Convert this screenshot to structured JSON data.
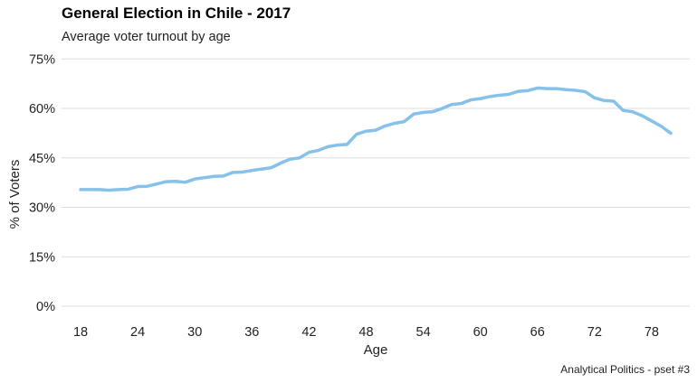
{
  "chart_data": {
    "type": "line",
    "title": "General Election in Chile - 2017",
    "subtitle": "Average voter turnout by age",
    "xlabel": "Age",
    "ylabel": "% of Voters",
    "caption": "Analytical Politics - pset #3",
    "xlim": [
      16,
      82
    ],
    "ylim": [
      -3,
      77
    ],
    "x_ticks": [
      18,
      24,
      30,
      36,
      42,
      48,
      54,
      60,
      66,
      72,
      78
    ],
    "y_ticks": [
      0,
      15,
      30,
      45,
      60,
      75
    ],
    "y_tick_labels": [
      "0%",
      "15%",
      "30%",
      "45%",
      "60%",
      "75%"
    ],
    "grid": "horizontal",
    "line_color": "#85c1e9",
    "series": [
      {
        "x": [
          18,
          19,
          20,
          21,
          22,
          23,
          24,
          25,
          26,
          27,
          28,
          29,
          30,
          31,
          32,
          33,
          34,
          35,
          36,
          37,
          38,
          39,
          40,
          41,
          42,
          43,
          44,
          45,
          46,
          47,
          48,
          49,
          50,
          51,
          52,
          53,
          54,
          55,
          56,
          57,
          58,
          59,
          60,
          61,
          62,
          63,
          64,
          65,
          66,
          67,
          68,
          69,
          70,
          71,
          72,
          73,
          74,
          75,
          76,
          77,
          78,
          79,
          80
        ],
        "values": [
          35.4,
          35.4,
          35.4,
          35.2,
          35.4,
          35.5,
          36.3,
          36.4,
          37.1,
          37.8,
          37.9,
          37.6,
          38.6,
          39.0,
          39.4,
          39.5,
          40.6,
          40.7,
          41.2,
          41.6,
          42.0,
          43.4,
          44.6,
          45.0,
          46.7,
          47.3,
          48.4,
          48.9,
          49.1,
          52.2,
          53.1,
          53.4,
          54.7,
          55.5,
          56.0,
          58.3,
          58.8,
          59.0,
          60.0,
          61.2,
          61.5,
          62.6,
          63.0,
          63.6,
          64.0,
          64.3,
          65.2,
          65.4,
          66.2,
          66.0,
          66.0,
          65.7,
          65.5,
          65.1,
          63.2,
          62.4,
          62.2,
          59.4,
          59.0,
          57.8,
          56.2,
          54.6,
          52.5
        ]
      }
    ]
  }
}
